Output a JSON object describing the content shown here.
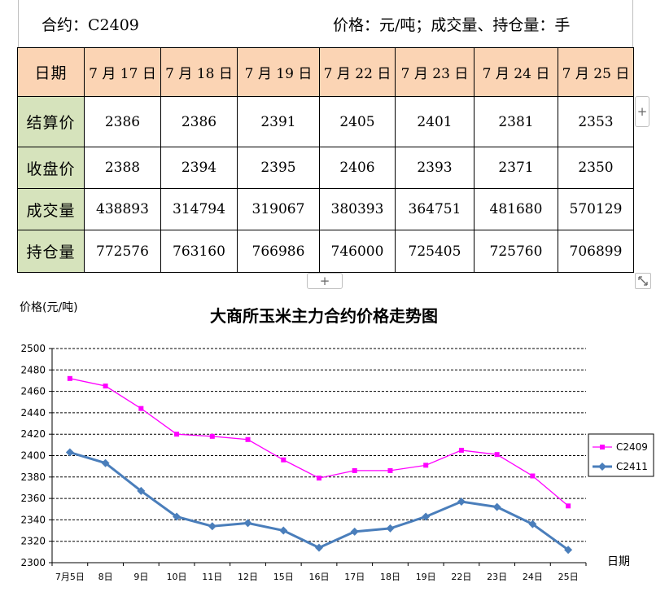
{
  "header": {
    "contract": "合约：C2409",
    "units": "价格：元/吨；成交量、持仓量：手"
  },
  "table": {
    "corner": "日期",
    "dates": [
      "7 月 17 日",
      "7 月 18 日",
      "7 月 19 日",
      "7 月 22 日",
      "7 月 23 日",
      "7 月 24 日",
      "7 月 25 日"
    ],
    "rows": [
      {
        "label": "结算价",
        "values": [
          "2386",
          "2386",
          "2391",
          "2405",
          "2401",
          "2381",
          "2353"
        ]
      },
      {
        "label": "收盘价",
        "values": [
          "2388",
          "2394",
          "2395",
          "2406",
          "2393",
          "2371",
          "2350"
        ]
      },
      {
        "label": "成交量",
        "values": [
          "438893",
          "314794",
          "319067",
          "380393",
          "364751",
          "481680",
          "570129"
        ]
      },
      {
        "label": "持仓量",
        "values": [
          "772576",
          "763160",
          "766986",
          "746000",
          "725405",
          "725760",
          "706899"
        ]
      }
    ]
  },
  "controls": {
    "add_column": "+",
    "add_row": "+"
  },
  "chart_data": {
    "type": "line",
    "title": "大商所玉米主力合约价格走势图",
    "ylabel": "价格(元/吨)",
    "xlabel": "日期",
    "categories": [
      "7月5日",
      "8日",
      "9日",
      "10日",
      "11日",
      "12日",
      "15日",
      "16日",
      "17日",
      "18日",
      "19日",
      "22日",
      "23日",
      "24日",
      "25日"
    ],
    "ylim": [
      2300,
      2500
    ],
    "yticks": [
      2300,
      2320,
      2340,
      2360,
      2380,
      2400,
      2420,
      2440,
      2460,
      2480,
      2500
    ],
    "grid": true,
    "legend": "right",
    "series": [
      {
        "name": "C2409",
        "color": "#ff00ff",
        "marker": "square",
        "values": [
          2472,
          2465,
          2444,
          2420,
          2418,
          2415,
          2396,
          2379,
          2386,
          2386,
          2391,
          2405,
          2401,
          2381,
          2353
        ]
      },
      {
        "name": "C2411",
        "color": "#4a7ebb",
        "marker": "diamond",
        "values": [
          2403,
          2393,
          2367,
          2343,
          2334,
          2337,
          2330,
          2314,
          2329,
          2332,
          2343,
          2357,
          2352,
          2336,
          2312
        ]
      }
    ]
  }
}
